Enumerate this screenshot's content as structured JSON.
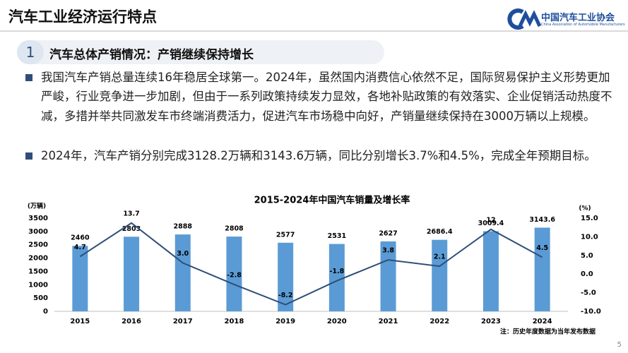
{
  "header": {
    "title": "汽车工业经济运行特点",
    "logo_cn": "中国汽车工业协会",
    "logo_en": "China Association of Automobile Manufacturers"
  },
  "section": {
    "number": "1",
    "title": "汽车总体产销情况：产销继续保持增长"
  },
  "bullets": [
    "我国汽车产销总量连续16年稳居全球第一。2024年，虽然国内消费信心依然不足，国际贸易保护主义形势更加严峻，行业竞争进一步加剧，但由于一系列政策持续发力显效，各地补贴政策的有效落实、企业促销活动热度不减，多措并举共同激发车市终端消费活力，促进汽车市场稳中向好，产销量继续保持在3000万辆以上规模。",
    "2024年，汽车产销分别完成3128.2万辆和3143.6万辆，同比分别增长3.7%和4.5%，完成全年预期目标。"
  ],
  "page_number": "5",
  "chart_data": {
    "type": "combo",
    "title": "2015-2024年中国汽车销量及增长率",
    "y_label": "(万辆)",
    "y2_label": "(%)",
    "note": "注：历史年度数据为当年发布数据",
    "categories": [
      "2015",
      "2016",
      "2017",
      "2018",
      "2019",
      "2020",
      "2021",
      "2022",
      "2023",
      "2024"
    ],
    "series": [
      {
        "type": "bar",
        "color": "#5b9bd5",
        "values": [
          2460,
          2803,
          2888,
          2808,
          2577,
          2531,
          2627,
          2686.4,
          3009.4,
          3143.6
        ]
      },
      {
        "type": "line",
        "axis": "y2",
        "color": "#2f4e79",
        "values": [
          4.7,
          13.7,
          3.0,
          -2.8,
          -8.2,
          -1.8,
          3.8,
          2.1,
          12,
          4.5
        ],
        "value_labels": [
          "4.7",
          "13.7",
          "3.0",
          "-2.8",
          "-8.2",
          "-1.8",
          "3.8",
          "2.1",
          "12",
          "4.5"
        ]
      }
    ],
    "ylim": [
      0,
      3500
    ],
    "yticks": [
      0,
      500,
      1000,
      1500,
      2000,
      2500,
      3000,
      3500
    ],
    "y2lim": [
      -10,
      15
    ],
    "y2ticks": [
      {
        "value": -10,
        "label": "-10.0"
      },
      {
        "value": -5,
        "label": "-5.0"
      },
      {
        "value": 0,
        "label": "0.0"
      },
      {
        "value": 5,
        "label": "5.0"
      },
      {
        "value": 10,
        "label": "10.0"
      },
      {
        "value": 15,
        "label": "15.0"
      }
    ]
  }
}
